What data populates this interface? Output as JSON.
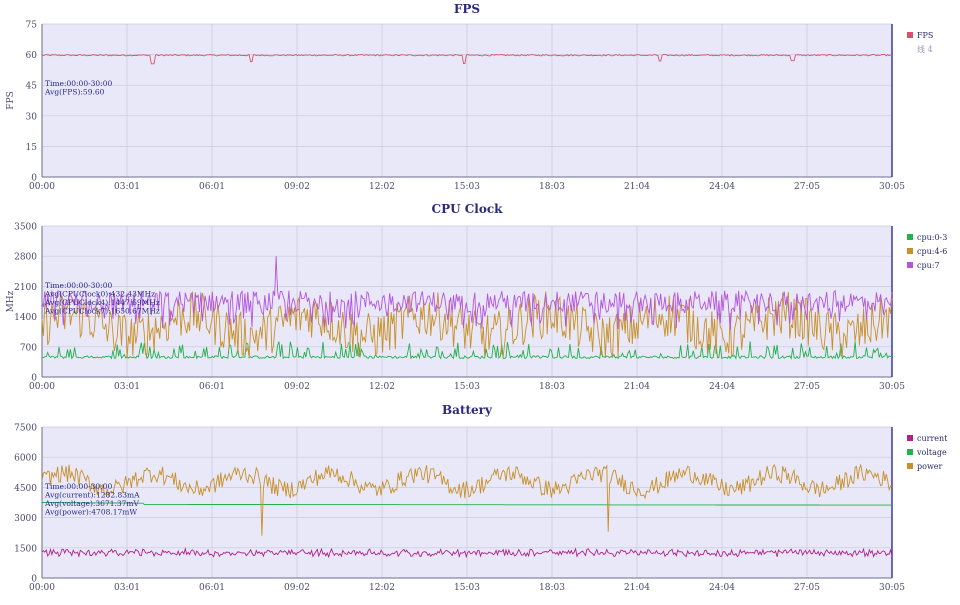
{
  "chart_data": [
    {
      "type": "line",
      "title": "FPS",
      "ylabel": "FPS",
      "xlabel": "",
      "x_ticks": [
        "00:00",
        "03:01",
        "06:01",
        "09:02",
        "12:02",
        "15:03",
        "18:03",
        "21:04",
        "24:04",
        "27:05",
        "30:05"
      ],
      "y_ticks": [
        "0",
        "15",
        "30",
        "45",
        "60",
        "75"
      ],
      "ylim": [
        0,
        75
      ],
      "grid": true,
      "legend_position": "right",
      "legend": [
        "FPS",
        "线 4"
      ],
      "annotation": [
        "Time:00:00-30:00",
        "Avg(FPS):59.60"
      ],
      "series": [
        {
          "name": "FPS",
          "color": "#d9506e",
          "base": 59.7,
          "noise": 0.35,
          "spikes": [
            [
              3.9,
              55.5
            ],
            [
              7.4,
              56.5
            ],
            [
              14.9,
              55.6
            ],
            [
              21.8,
              56.8
            ],
            [
              26.5,
              57.0
            ]
          ],
          "values_note": "",
          "y_mean": 59.6
        }
      ]
    },
    {
      "type": "line",
      "title": "CPU Clock",
      "ylabel": "MHz",
      "xlabel": "",
      "x_ticks": [
        "00:00",
        "03:01",
        "06:01",
        "09:02",
        "12:02",
        "15:03",
        "18:03",
        "21:04",
        "24:04",
        "27:05",
        "30:05"
      ],
      "y_ticks": [
        "0",
        "700",
        "1400",
        "2100",
        "2800",
        "3500"
      ],
      "ylim": [
        0,
        3500
      ],
      "grid": true,
      "legend_position": "right",
      "legend": [
        "cpu:0-3",
        "cpu:4-6",
        "cpu:7"
      ],
      "annotation": [
        "Time:00:00-30:00",
        "Avg(CPUClock0):432.43MHz",
        "Avg(CPUClock4):1447.69MHz",
        "Avg(CPUClock7):1650.67MHz"
      ],
      "series": [
        {
          "name": "cpu:0-3",
          "color": "#22b14c",
          "y_mean": 432.43
        },
        {
          "name": "cpu:4-6",
          "color": "#c8902a",
          "y_mean": 1447.69
        },
        {
          "name": "cpu:7",
          "color": "#b455e0",
          "y_mean": 1650.67
        }
      ]
    },
    {
      "type": "line",
      "title": "Battery",
      "ylabel": "",
      "xlabel": "",
      "x_ticks": [
        "00:00",
        "03:01",
        "06:01",
        "09:02",
        "12:02",
        "15:03",
        "18:03",
        "21:04",
        "24:04",
        "27:05",
        "30:05"
      ],
      "y_ticks": [
        "0",
        "1500",
        "3000",
        "4500",
        "6000",
        "7500"
      ],
      "ylim": [
        0,
        7500
      ],
      "grid": true,
      "legend_position": "right",
      "legend": [
        "current",
        "voltage",
        "power"
      ],
      "annotation": [
        "Time:00:00-30:00",
        "Avg(current):1282.83mA",
        "Avg(voltage):3671.37mV",
        "Avg(power):4708.17mW"
      ],
      "series": [
        {
          "name": "current",
          "color": "#b0218a",
          "y_mean": 1282.83
        },
        {
          "name": "voltage",
          "color": "#22b14c",
          "y_mean": 3671.37
        },
        {
          "name": "power",
          "color": "#c8902a",
          "y_mean": 4708.17
        }
      ]
    }
  ]
}
